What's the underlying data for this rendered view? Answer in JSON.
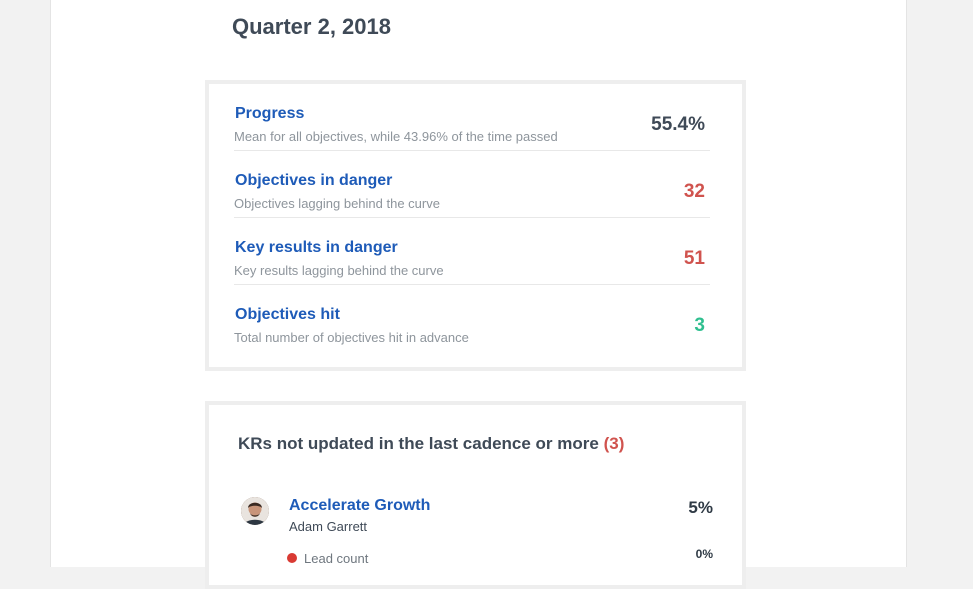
{
  "quarter": {
    "title": "Quarter 2, 2018"
  },
  "colors": {
    "link": "#1e5bb8",
    "danger": "#d0534e",
    "success": "#2fbf8f",
    "neutral": "#3f4a57"
  },
  "stats": [
    {
      "title": "Progress",
      "description": "Mean for all objectives, while 43.96% of the time passed",
      "value": "55.4%",
      "value_color": "#3f4a57"
    },
    {
      "title": "Objectives in danger",
      "description": "Objectives lagging behind the curve",
      "value": "32",
      "value_color": "#d0534e"
    },
    {
      "title": "Key results in danger",
      "description": "Key results lagging behind the curve",
      "value": "51",
      "value_color": "#d0534e"
    },
    {
      "title": "Objectives hit",
      "description": "Total number of objectives hit in advance",
      "value": "3",
      "value_color": "#2fbf8f"
    }
  ],
  "kr_section": {
    "heading": "KRs not updated in the last cadence or more",
    "count": "(3)",
    "items": [
      {
        "name": "Accelerate Growth",
        "owner": "Adam Garrett",
        "percent": "5%",
        "sub_items": [
          {
            "label": "Lead count",
            "percent": "0%",
            "status_color": "#d93a33"
          }
        ]
      }
    ]
  }
}
